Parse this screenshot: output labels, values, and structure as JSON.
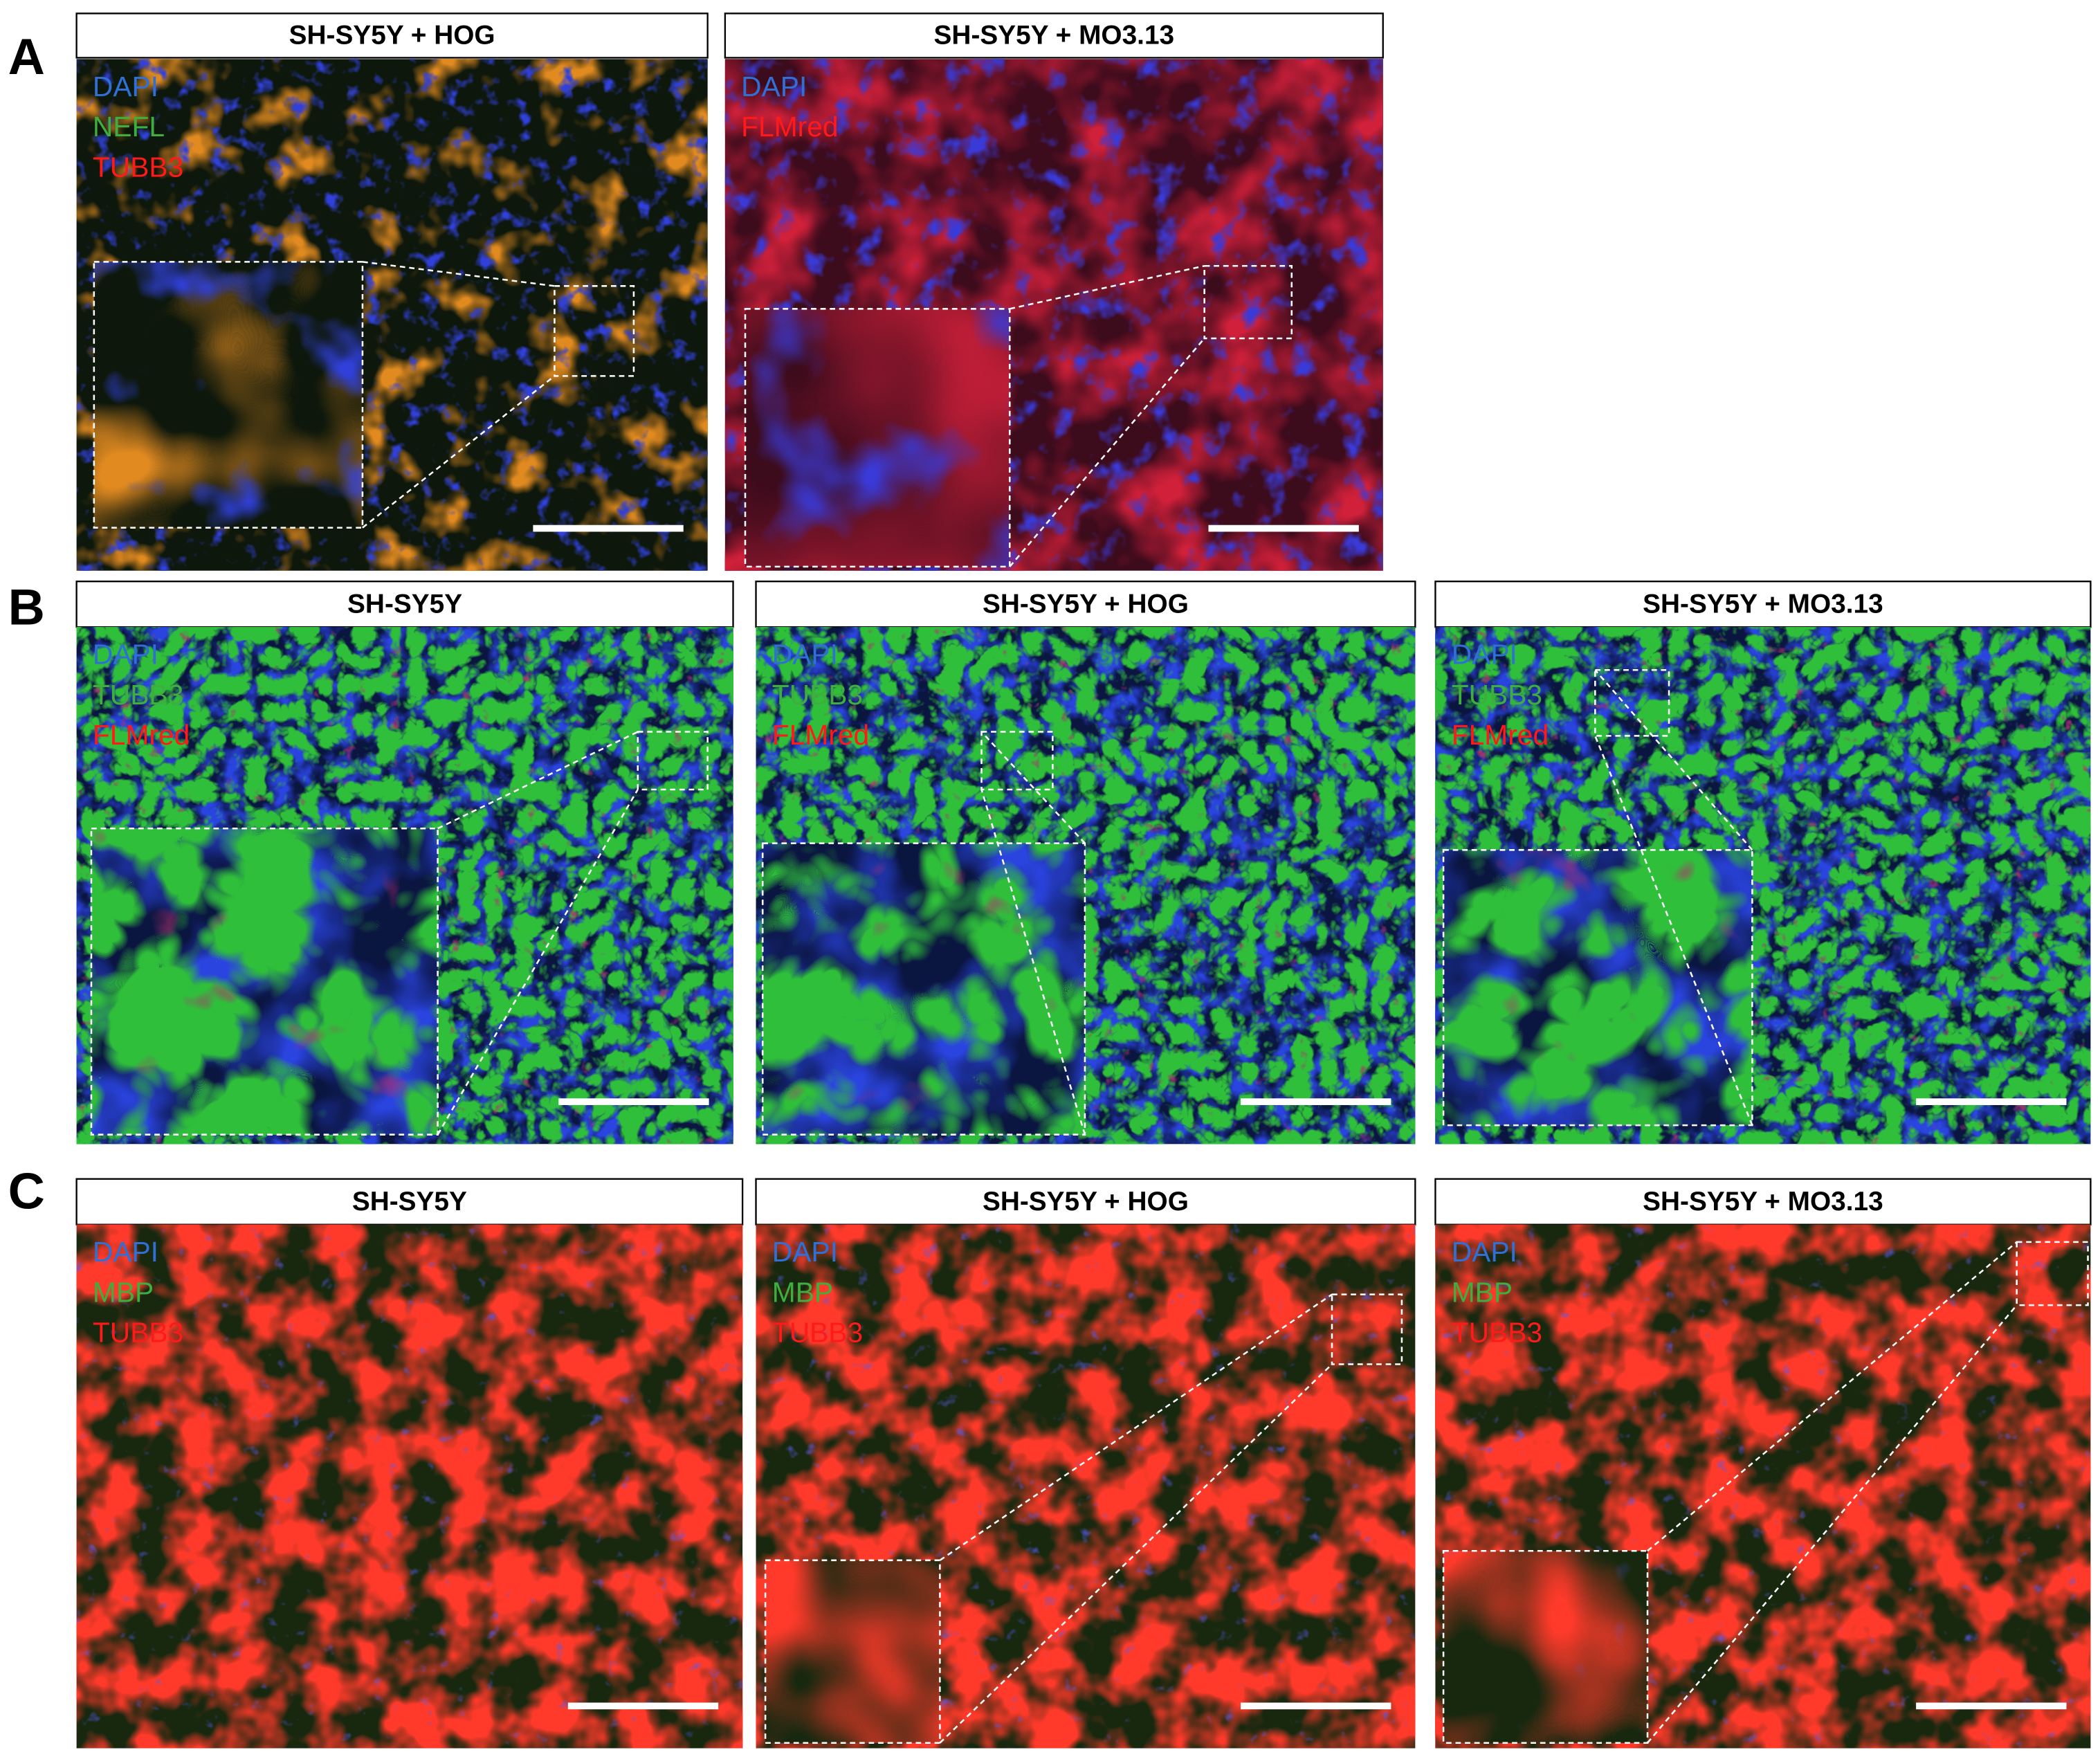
{
  "panels": [
    {
      "label": "A",
      "images": [
        {
          "title": "SH-SY5Y + HOG",
          "channels": [
            {
              "name": "DAPI",
              "color": "#2f6fd6"
            },
            {
              "name": "NEFL",
              "color": "#3fae3f"
            },
            {
              "name": "TUBB3",
              "color": "#ff1a1a"
            }
          ]
        },
        {
          "title": "SH-SY5Y + MO3.13",
          "channels": [
            {
              "name": "DAPI",
              "color": "#2f6fd6"
            },
            {
              "name": "FLMred",
              "color": "#ff1a1a"
            }
          ]
        }
      ]
    },
    {
      "label": "B",
      "images": [
        {
          "title": "SH-SY5Y",
          "channels": [
            {
              "name": "DAPI",
              "color": "#2f6fd6"
            },
            {
              "name": "TUBB3",
              "color": "#3fae3f"
            },
            {
              "name": "FLMred",
              "color": "#ff1a1a"
            }
          ]
        },
        {
          "title": "SH-SY5Y + HOG",
          "channels": [
            {
              "name": "DAPI",
              "color": "#2f6fd6"
            },
            {
              "name": "TUBB3",
              "color": "#3fae3f"
            },
            {
              "name": "FLMred",
              "color": "#ff1a1a"
            }
          ]
        },
        {
          "title": "SH-SY5Y + MO3.13",
          "channels": [
            {
              "name": "DAPI",
              "color": "#2f6fd6"
            },
            {
              "name": "TUBB3",
              "color": "#3fae3f"
            },
            {
              "name": "FLMred",
              "color": "#ff1a1a"
            }
          ]
        }
      ]
    },
    {
      "label": "C",
      "images": [
        {
          "title": "SH-SY5Y",
          "channels": [
            {
              "name": "DAPI",
              "color": "#2f6fd6"
            },
            {
              "name": "MBP",
              "color": "#3fae3f"
            },
            {
              "name": "TUBB3",
              "color": "#ff1a1a"
            }
          ]
        },
        {
          "title": "SH-SY5Y + HOG",
          "channels": [
            {
              "name": "DAPI",
              "color": "#2f6fd6"
            },
            {
              "name": "MBP",
              "color": "#3fae3f"
            },
            {
              "name": "TUBB3",
              "color": "#ff1a1a"
            }
          ]
        },
        {
          "title": "SH-SY5Y + MO3.13",
          "channels": [
            {
              "name": "DAPI",
              "color": "#2f6fd6"
            },
            {
              "name": "MBP",
              "color": "#3fae3f"
            },
            {
              "name": "TUBB3",
              "color": "#ff1a1a"
            }
          ]
        }
      ]
    }
  ]
}
